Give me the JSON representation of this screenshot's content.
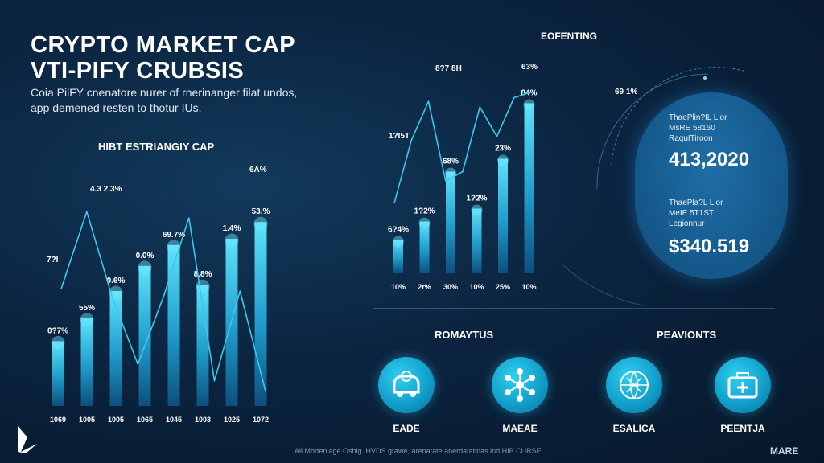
{
  "header": {
    "title_line1": "CRYPTO MARKET CAP",
    "title_line2": "VTI-PIFY CRUBSIS",
    "subtitle_line1": "Coia PilFY cnenatore nurer of rnerinanger filat undos,",
    "subtitle_line2": "app demened resten to thotur IUs."
  },
  "left_chart": {
    "title": "HIBT ESTRIANGIY CAP",
    "x_labels": [
      "1069",
      "1005",
      "1005",
      "1065",
      "1045",
      "1003",
      "1025",
      "1072"
    ],
    "bar_labels": [
      "0?7%",
      "55%",
      "0.6%",
      "0.0%",
      "69.7%",
      "8.8%",
      "1.4%",
      "53.%"
    ],
    "bar_heights": [
      0.31,
      0.42,
      0.55,
      0.67,
      0.77,
      0.58,
      0.8,
      0.88
    ],
    "line_labels": [
      "7?I",
      "4.3 2.3%",
      "6A%"
    ],
    "line_points": [
      0.56,
      0.93,
      0.52,
      0.2,
      0.52,
      0.9,
      0.12,
      0.55,
      0.07
    ]
  },
  "mid_chart": {
    "title": "EOFENTING",
    "x_labels": [
      "10%",
      "2r%",
      "30%",
      "10%",
      "25%",
      "10%"
    ],
    "bar_labels": [
      "6?4%",
      "1?2%",
      "68%",
      "1?2%",
      "23%",
      "84%"
    ],
    "bar_heights": [
      0.18,
      0.28,
      0.55,
      0.35,
      0.62,
      0.92
    ],
    "line_labels": [
      "1?I5T",
      "8?7 8H",
      "63%"
    ],
    "line_points": [
      0.38,
      0.72,
      0.93,
      0.5,
      0.55,
      0.9,
      0.74,
      0.95,
      0.98
    ]
  },
  "stats_panel": {
    "arc_label": "69 1%",
    "block1": [
      "ThaePlin?IL Lior",
      "MsRE 58160",
      "RaquITiroon"
    ],
    "value1": "413,2020",
    "block2": [
      "ThaePla?L Lior",
      "MeIE 5T1ST",
      "Legionnur"
    ],
    "value2": "$340.519"
  },
  "sections": {
    "left_title": "ROMAYTUS",
    "right_title": "PEAVIONTS",
    "icons": [
      {
        "label": "EADE",
        "icon": "vehicle-icon"
      },
      {
        "label": "MAEAE",
        "icon": "network-icon"
      },
      {
        "label": "ESALICA",
        "icon": "globe-shield-icon"
      },
      {
        "label": "PEENTJA",
        "icon": "medical-kit-icon"
      }
    ]
  },
  "footer": {
    "text": "All Morteniage Oshig. HVDS grawe, arenatate anerdatatinas ind HIB CURSE",
    "brand": "MARE"
  },
  "colors": {
    "accent": "#29c6ee",
    "bar_top": "#4fdcf7",
    "bar_bottom": "#0f5a8a",
    "background": "#0b2440"
  }
}
